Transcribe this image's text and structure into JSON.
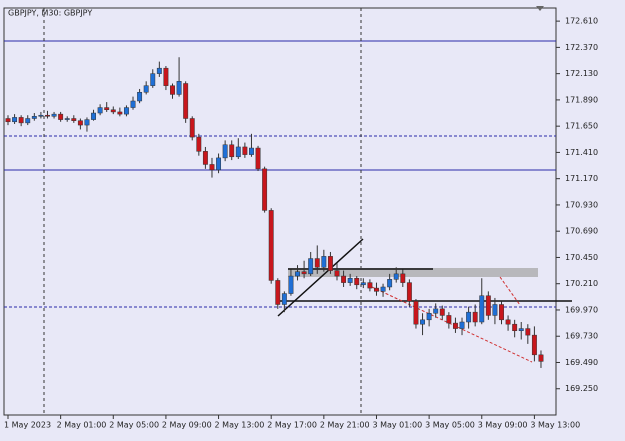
{
  "chart_data": {
    "type": "candlestick",
    "title": "GBPJPY, M30:  GBPJPY",
    "categories": [
      "1 May 2023",
      null,
      null,
      null,
      null,
      null,
      null,
      null,
      "2 May 01:00",
      null,
      null,
      null,
      null,
      null,
      null,
      null,
      "2 May 05:00",
      null,
      null,
      null,
      null,
      null,
      null,
      null,
      "2 May 09:00",
      null,
      null,
      null,
      null,
      null,
      null,
      null,
      "2 May 13:00",
      null,
      null,
      null,
      null,
      null,
      null,
      null,
      "2 May 17:00",
      null,
      null,
      null,
      null,
      null,
      null,
      null,
      "2 May 21:00",
      null,
      null,
      null,
      null,
      null,
      null,
      null,
      "3 May 01:00",
      null,
      null,
      null,
      null,
      null,
      null,
      null,
      "3 May 05:00",
      null,
      null,
      null,
      null,
      null,
      null,
      null,
      "3 May 09:00",
      null,
      null,
      null,
      null,
      null,
      null,
      null,
      "3 May 13:00",
      null
    ],
    "open": [
      171.72,
      171.69,
      171.73,
      171.68,
      171.72,
      171.74,
      171.75,
      171.74,
      171.76,
      171.71,
      171.72,
      171.7,
      171.66,
      171.71,
      171.77,
      171.82,
      171.8,
      171.78,
      171.76,
      171.82,
      171.88,
      171.96,
      172.02,
      172.13,
      172.18,
      172.02,
      171.94,
      172.04,
      171.72,
      171.55,
      171.42,
      171.3,
      171.25,
      171.36,
      171.48,
      171.37,
      171.46,
      171.39,
      171.45,
      171.26,
      170.88,
      170.24,
      170.02,
      170.12,
      170.28,
      170.32,
      170.3,
      170.44,
      170.36,
      170.46,
      170.33,
      170.28,
      170.22,
      170.26,
      170.2,
      170.22,
      170.17,
      170.14,
      170.18,
      170.25,
      170.3,
      170.22,
      170.05,
      169.84,
      169.88,
      169.94,
      169.98,
      169.92,
      169.85,
      169.8,
      169.86,
      169.95,
      169.86,
      170.1,
      169.92,
      170.02,
      169.88,
      169.84,
      169.78,
      169.8,
      169.74,
      169.56
    ],
    "high": [
      171.75,
      171.76,
      171.75,
      171.75,
      171.77,
      171.78,
      171.79,
      171.78,
      171.78,
      171.74,
      171.75,
      171.72,
      171.73,
      171.8,
      171.85,
      171.87,
      171.83,
      171.82,
      171.84,
      171.92,
      171.99,
      172.06,
      172.17,
      172.24,
      172.2,
      172.04,
      172.28,
      172.06,
      171.74,
      171.58,
      171.46,
      171.36,
      171.4,
      171.52,
      171.52,
      171.54,
      171.5,
      171.58,
      171.47,
      171.28,
      170.9,
      170.26,
      170.14,
      170.34,
      170.38,
      170.42,
      170.5,
      170.56,
      170.52,
      170.5,
      170.4,
      170.33,
      170.3,
      170.28,
      170.26,
      170.25,
      170.22,
      170.21,
      170.3,
      170.36,
      170.34,
      170.25,
      170.07,
      169.94,
      169.98,
      170.03,
      170.01,
      169.95,
      169.9,
      169.9,
      170.0,
      170.02,
      170.26,
      170.14,
      170.08,
      170.05,
      169.92,
      169.88,
      169.86,
      169.84,
      169.82,
      169.6
    ],
    "low": [
      171.66,
      171.67,
      171.65,
      171.66,
      171.7,
      171.72,
      171.72,
      171.72,
      171.69,
      171.69,
      171.68,
      171.62,
      171.6,
      171.7,
      171.75,
      171.78,
      171.76,
      171.74,
      171.74,
      171.8,
      171.86,
      171.94,
      172.0,
      172.1,
      171.98,
      171.9,
      171.92,
      171.68,
      171.52,
      171.38,
      171.26,
      171.18,
      171.22,
      171.33,
      171.34,
      171.35,
      171.36,
      171.37,
      171.24,
      170.86,
      170.21,
      169.98,
      169.95,
      170.1,
      170.24,
      170.26,
      170.28,
      170.3,
      170.32,
      170.3,
      170.24,
      170.18,
      170.19,
      170.16,
      170.17,
      170.14,
      170.1,
      170.09,
      170.15,
      170.22,
      170.18,
      170.0,
      169.8,
      169.74,
      169.82,
      169.9,
      169.88,
      169.8,
      169.76,
      169.74,
      169.8,
      169.82,
      169.84,
      169.88,
      169.84,
      169.84,
      169.78,
      169.72,
      169.7,
      169.66,
      169.5,
      169.44
    ],
    "close": [
      171.69,
      171.73,
      171.68,
      171.72,
      171.74,
      171.75,
      171.74,
      171.76,
      171.71,
      171.72,
      171.7,
      171.66,
      171.71,
      171.77,
      171.82,
      171.8,
      171.78,
      171.76,
      171.82,
      171.88,
      171.96,
      172.02,
      172.13,
      172.18,
      172.02,
      171.94,
      172.06,
      171.72,
      171.55,
      171.42,
      171.3,
      171.25,
      171.36,
      171.48,
      171.37,
      171.46,
      171.39,
      171.45,
      171.26,
      170.88,
      170.24,
      170.02,
      170.12,
      170.28,
      170.32,
      170.3,
      170.44,
      170.36,
      170.46,
      170.33,
      170.28,
      170.22,
      170.26,
      170.2,
      170.22,
      170.17,
      170.14,
      170.18,
      170.25,
      170.3,
      170.22,
      170.05,
      169.84,
      169.88,
      169.94,
      169.98,
      169.92,
      169.85,
      169.8,
      169.86,
      169.95,
      169.86,
      170.1,
      169.92,
      170.02,
      169.88,
      169.84,
      169.78,
      169.8,
      169.74,
      169.56,
      169.5
    ],
    "up_color": "#1f6fd6",
    "down_color": "#c8161c",
    "ylim": [
      169.01,
      172.73
    ],
    "yticks": [
      {
        "value": 172.61,
        "label": "172.610"
      },
      {
        "value": 172.37,
        "label": "172.370"
      },
      {
        "value": 172.13,
        "label": "172.130"
      },
      {
        "value": 171.89,
        "label": "171.890"
      },
      {
        "value": 171.65,
        "label": "171.650"
      },
      {
        "value": 171.41,
        "label": "171.410"
      },
      {
        "value": 171.17,
        "label": "171.170"
      },
      {
        "value": 170.93,
        "label": "170.930"
      },
      {
        "value": 170.69,
        "label": "170.690"
      },
      {
        "value": 170.45,
        "label": "170.450"
      },
      {
        "value": 170.21,
        "label": "170.210"
      },
      {
        "value": 169.97,
        "label": "169.970"
      },
      {
        "value": 169.73,
        "label": "169.730"
      },
      {
        "value": 169.49,
        "label": "169.490"
      },
      {
        "value": 169.25,
        "label": "169.250"
      }
    ]
  }
}
